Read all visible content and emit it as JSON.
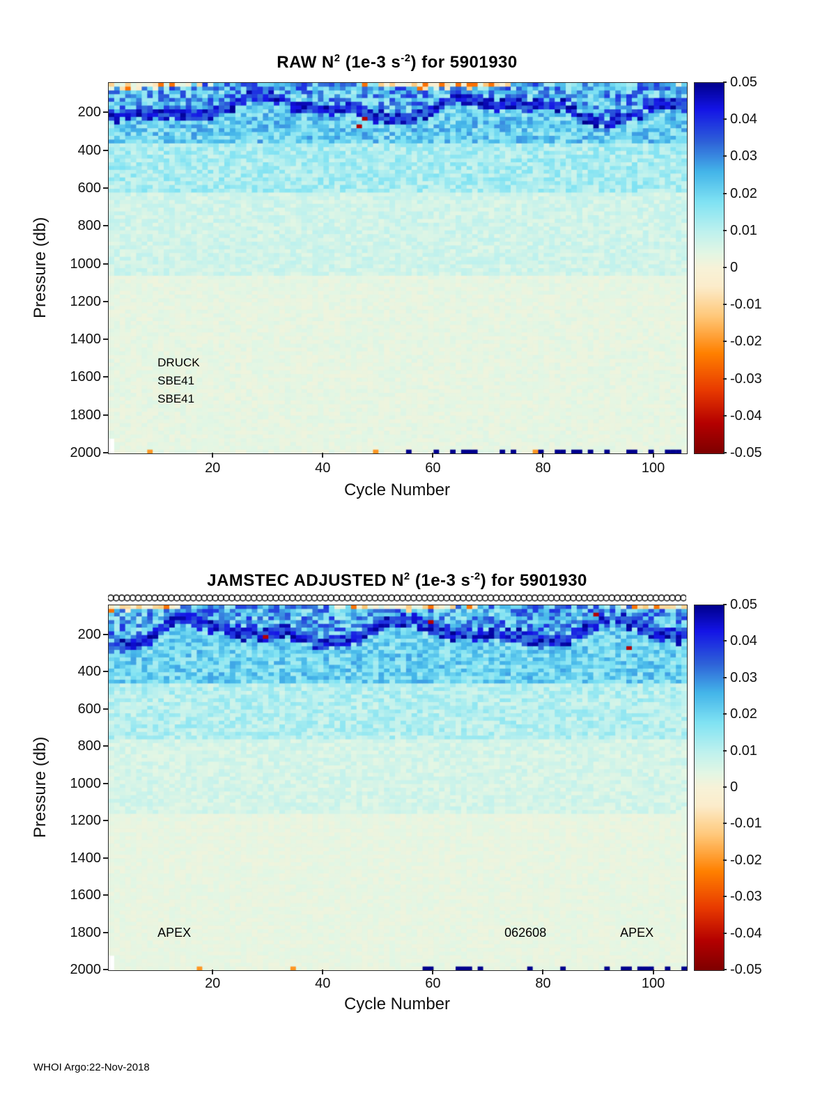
{
  "page": {
    "footer": "WHOI Argo:22-Nov-2018",
    "background": "#ffffff"
  },
  "colorbar": {
    "vmin": -0.05,
    "vmax": 0.05,
    "ticks": [
      "0.05",
      "0.04",
      "0.03",
      "0.02",
      "0.01",
      "0",
      "-0.01",
      "-0.02",
      "-0.03",
      "-0.04",
      "-0.05"
    ]
  },
  "colormap": [
    {
      "t": 0.0,
      "c": "#7f0000"
    },
    {
      "t": 0.08,
      "c": "#b40000"
    },
    {
      "t": 0.17,
      "c": "#e83a00"
    },
    {
      "t": 0.27,
      "c": "#ff8000"
    },
    {
      "t": 0.37,
      "c": "#ffc879"
    },
    {
      "t": 0.45,
      "c": "#fceccb"
    },
    {
      "t": 0.5,
      "c": "#f7f2d8"
    },
    {
      "t": 0.54,
      "c": "#e3f6e4"
    },
    {
      "t": 0.6,
      "c": "#bdf1ee"
    },
    {
      "t": 0.68,
      "c": "#7fe2f3"
    },
    {
      "t": 0.76,
      "c": "#44b5e9"
    },
    {
      "t": 0.84,
      "c": "#2e62d8"
    },
    {
      "t": 0.93,
      "c": "#1414e6"
    },
    {
      "t": 1.0,
      "c": "#00008d"
    }
  ],
  "chart_data": [
    {
      "type": "heatmap",
      "float_id": "5901930",
      "title": {
        "pre": "RAW N",
        "sup1": "2",
        "mid": " (1e-3 s",
        "sup2": "-2",
        "post": ") for 5901930"
      },
      "xlabel": "Cycle Number",
      "ylabel": "Pressure (db)",
      "x_ticks": [
        20,
        40,
        60,
        80,
        100
      ],
      "y_ticks": [
        200,
        400,
        600,
        800,
        1000,
        1200,
        1400,
        1600,
        1800,
        2000
      ],
      "x_range": [
        1,
        106
      ],
      "y_range": [
        40,
        2000
      ],
      "colorbar_ticks": [
        "0.05",
        "0.04",
        "0.03",
        "0.02",
        "0.01",
        "0",
        "-0.01",
        "-0.02",
        "-0.03",
        "-0.04",
        "-0.05"
      ],
      "annotations": [
        {
          "text": "DRUCK",
          "cycle": 10,
          "pressure": 1530
        },
        {
          "text": "SBE41",
          "cycle": 10,
          "pressure": 1625
        },
        {
          "text": "SBE41",
          "cycle": 10,
          "pressure": 1720
        }
      ],
      "bottom_dashes": true,
      "missing_notch": true,
      "top_markers": null,
      "field": {
        "seed": 20181122,
        "cycles": 105,
        "p_top": 40,
        "p_bottom": 2000,
        "bin_db": 20,
        "surface": {
          "base": 48,
          "amp": 22,
          "period": 9,
          "min": -0.014,
          "max": 0.006
        },
        "band": {
          "center": 175,
          "wiggle1": [
            45,
            6.5,
            0.3
          ],
          "wiggle2": [
            28,
            2.9,
            2.0
          ],
          "jitter": 18,
          "core_half_width": 28,
          "core_min": 0.032,
          "core_max": 0.05,
          "upper_min": 0.012,
          "upper_max": 0.04
        },
        "decay_layers": [
          {
            "to": 360,
            "min": 0.012,
            "max": 0.03
          },
          {
            "to": 620,
            "min": 0.007,
            "max": 0.018
          },
          {
            "to": 1050,
            "min": 0.004,
            "max": 0.01
          },
          {
            "to": 2000,
            "min": 0.0015,
            "max": 0.005
          }
        ],
        "outlier_rate": 0.002
      }
    },
    {
      "type": "heatmap",
      "float_id": "5901930",
      "title": {
        "pre": "JAMSTEC  ADJUSTED N",
        "sup1": "2",
        "mid": " (1e-3 s",
        "sup2": "-2",
        "post": ") for 5901930"
      },
      "xlabel": "Cycle Number",
      "ylabel": "Pressure (db)",
      "x_ticks": [
        20,
        40,
        60,
        80,
        100
      ],
      "y_ticks": [
        200,
        400,
        600,
        800,
        1000,
        1200,
        1400,
        1600,
        1800,
        2000
      ],
      "x_range": [
        1,
        106
      ],
      "y_range": [
        40,
        2000
      ],
      "colorbar_ticks": [
        "0.05",
        "0.04",
        "0.03",
        "0.02",
        "0.01",
        "0",
        "-0.01",
        "-0.02",
        "-0.03",
        "-0.04",
        "-0.05"
      ],
      "annotations": [
        {
          "text": "APEX",
          "cycle": 10,
          "pressure": 1805
        },
        {
          "text": "062608",
          "cycle": 73,
          "pressure": 1805
        },
        {
          "text": "APEX",
          "cycle": 94,
          "pressure": 1805
        }
      ],
      "bottom_dashes": true,
      "missing_notch": true,
      "top_markers": {
        "symbol": "circle",
        "count": 105
      },
      "field": {
        "seed": 62608,
        "cycles": 105,
        "p_top": 40,
        "p_bottom": 2000,
        "bin_db": 20,
        "surface": {
          "base": 46,
          "amp": 20,
          "period": 8,
          "min": -0.014,
          "max": 0.006
        },
        "band": {
          "center": 185,
          "wiggle1": [
            48,
            6.0,
            1.8
          ],
          "wiggle2": [
            30,
            3.1,
            0.6
          ],
          "jitter": 20,
          "core_half_width": 34,
          "core_min": 0.03,
          "core_max": 0.05,
          "upper_min": 0.012,
          "upper_max": 0.04
        },
        "decay_layers": [
          {
            "to": 460,
            "min": 0.012,
            "max": 0.028
          },
          {
            "to": 760,
            "min": 0.006,
            "max": 0.016
          },
          {
            "to": 1150,
            "min": 0.0035,
            "max": 0.009
          },
          {
            "to": 2000,
            "min": 0.0015,
            "max": 0.0045
          }
        ],
        "outlier_rate": 0.002
      }
    }
  ]
}
